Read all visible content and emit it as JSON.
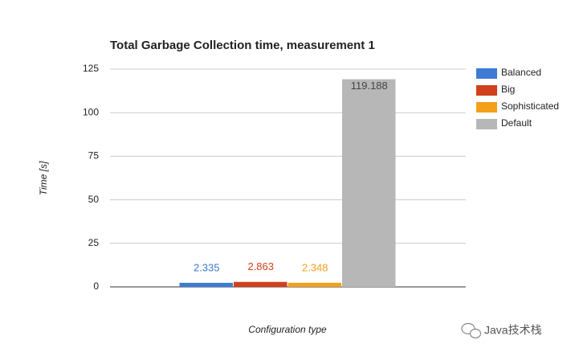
{
  "chart_data": {
    "type": "bar",
    "title": "Total Garbage Collection time, measurement 1",
    "x_label": "Configuration type",
    "y_label": "Time [s]",
    "categories": [
      null
    ],
    "series": [
      {
        "name": "Balanced",
        "color": "#3d7bd4",
        "values": [
          2.335
        ]
      },
      {
        "name": "Big",
        "color": "#d0401b",
        "values": [
          2.863
        ]
      },
      {
        "name": "Sophisticated",
        "color": "#f4a01c",
        "values": [
          2.348
        ]
      },
      {
        "name": "Default",
        "color": "#b7b7b7",
        "values": [
          119.188
        ]
      }
    ],
    "ylim": [
      0,
      125
    ],
    "yticks": [
      0,
      25,
      50,
      75,
      100,
      125
    ],
    "grid": true,
    "legend": "right"
  },
  "watermark": "Java技术栈"
}
